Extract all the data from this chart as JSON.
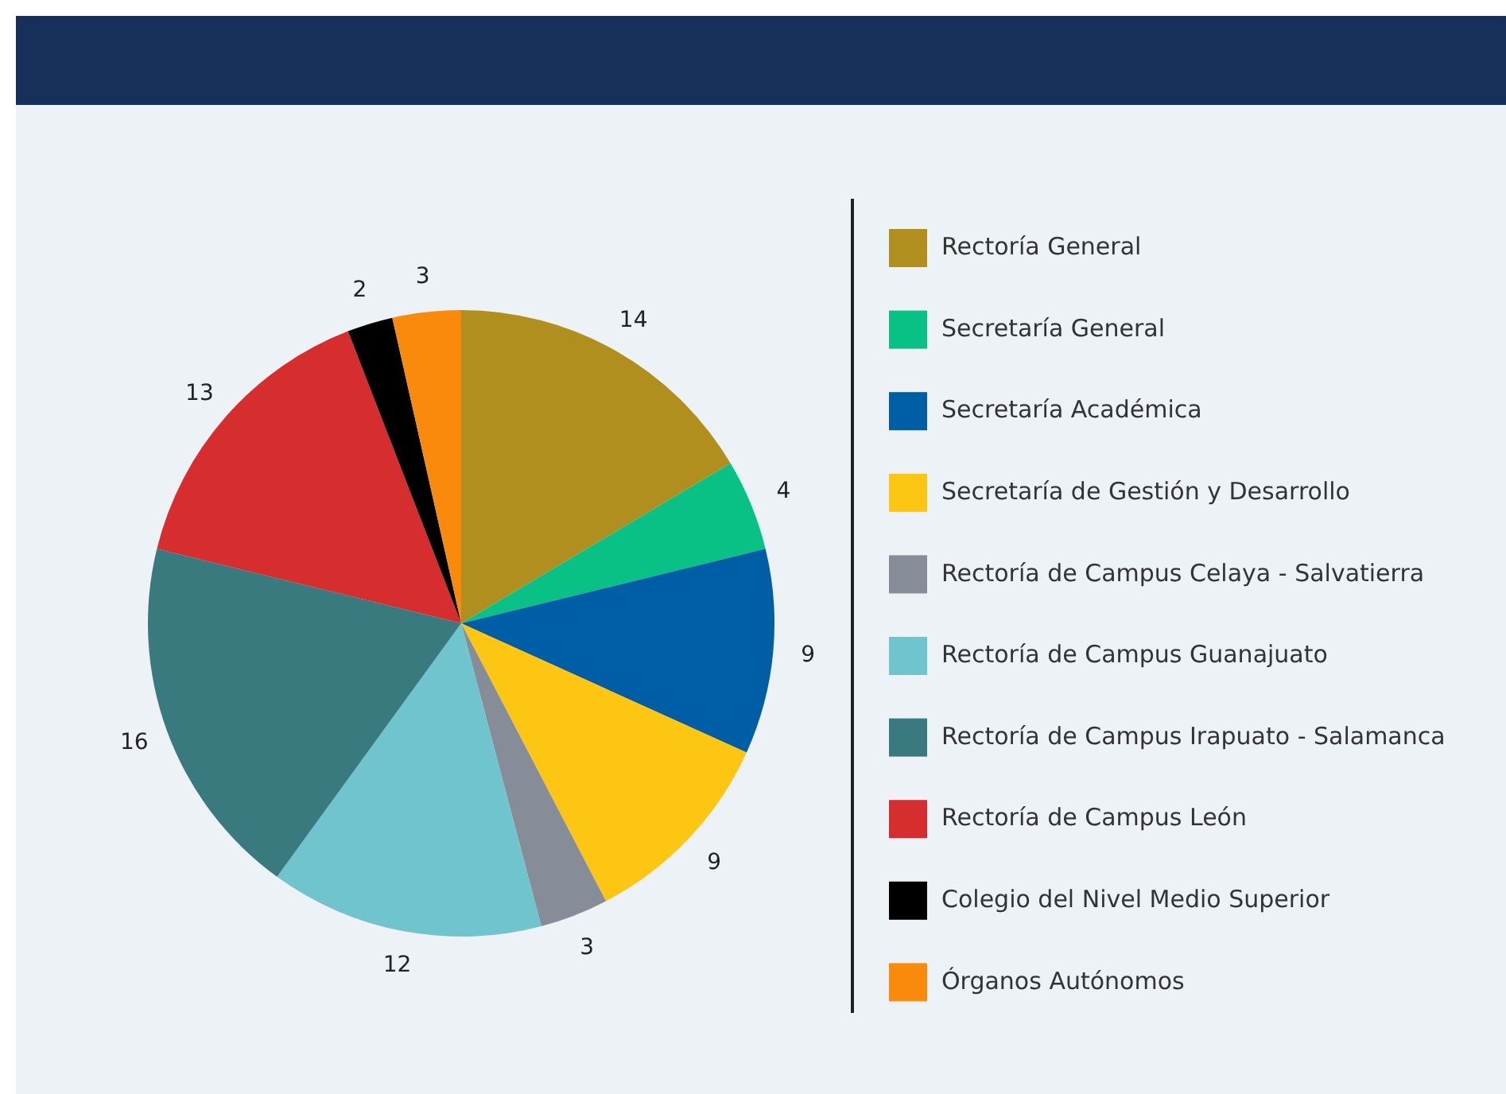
{
  "chart_data": {
    "type": "pie",
    "categories": [
      "Rectoría General",
      "Secretaría General",
      "Secretaría Académica",
      "Secretaría de Gestión y Desarrollo",
      "Rectoría de Campus Celaya - Salvatierra",
      "Rectoría de Campus Guanajuato",
      "Rectoría de Campus Irapuato - Salamanca",
      "Rectoría de Campus León",
      "Colegio del Nivel Medio Superior",
      "Órganos Autónomos"
    ],
    "values": [
      14,
      4,
      9,
      9,
      3,
      12,
      16,
      13,
      2,
      3
    ],
    "colors": [
      "#b08f1e",
      "#0ac185",
      "#005ea6",
      "#fdc612",
      "#868d99",
      "#6fc4cd",
      "#397a7f",
      "#d62e2e",
      "#000000",
      "#f98a0c"
    ],
    "data_labels": true,
    "legend": "right"
  }
}
